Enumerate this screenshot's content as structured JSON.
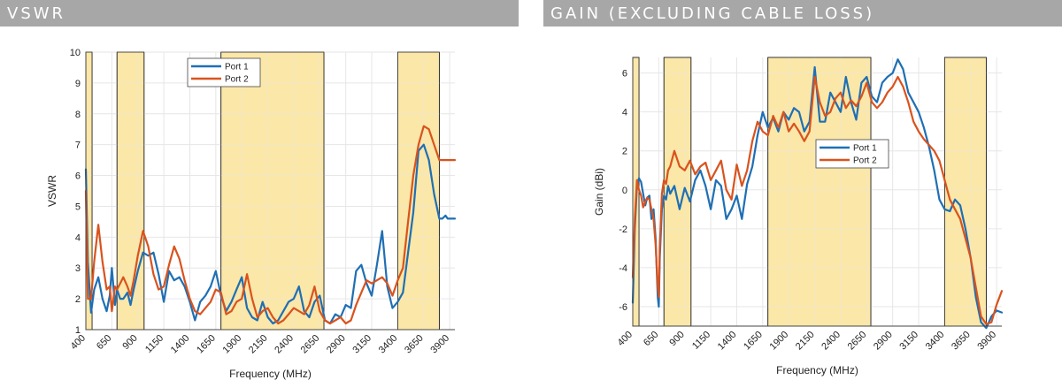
{
  "panels": {
    "left_title": "VSWR",
    "right_title": "GAIN (EXCLUDING CABLE LOSS)"
  },
  "colors": {
    "port1": "#1f6fb4",
    "port2": "#d9531e",
    "band_fill": "#fbe7a8",
    "band_edge": "#222222",
    "grid": "#e6e6e6"
  },
  "chart_data": [
    {
      "type": "line",
      "title": "VSWR",
      "xlabel": "Frequency (MHz)",
      "ylabel": "VSWR",
      "xlim": [
        400,
        3950
      ],
      "ylim": [
        1,
        10
      ],
      "x_ticks": [
        400,
        650,
        900,
        1150,
        1400,
        1650,
        1900,
        2150,
        2400,
        2650,
        2900,
        3150,
        3400,
        3650,
        3900
      ],
      "y_ticks": [
        1,
        2,
        3,
        4,
        5,
        6,
        7,
        8,
        9,
        10
      ],
      "grid": true,
      "legend": "top-center",
      "bands": [
        [
          400,
          460
        ],
        [
          700,
          960
        ],
        [
          1700,
          2690
        ],
        [
          3400,
          3800
        ]
      ],
      "series": [
        {
          "name": "Port 1",
          "color": "#1f6fb4",
          "x": [
            400,
            420,
            450,
            480,
            520,
            560,
            600,
            630,
            650,
            680,
            700,
            730,
            760,
            800,
            830,
            860,
            900,
            950,
            1000,
            1050,
            1100,
            1150,
            1200,
            1250,
            1300,
            1350,
            1400,
            1450,
            1500,
            1550,
            1600,
            1650,
            1700,
            1750,
            1800,
            1850,
            1900,
            1950,
            2000,
            2050,
            2100,
            2150,
            2200,
            2250,
            2300,
            2350,
            2400,
            2450,
            2500,
            2550,
            2600,
            2650,
            2700,
            2750,
            2800,
            2850,
            2900,
            2950,
            3000,
            3050,
            3100,
            3150,
            3200,
            3250,
            3300,
            3350,
            3400,
            3450,
            3500,
            3550,
            3600,
            3650,
            3700,
            3750,
            3800,
            3830,
            3860,
            3880,
            3900,
            3930,
            3950
          ],
          "y": [
            6.2,
            3.2,
            1.55,
            2.3,
            2.7,
            2.0,
            1.6,
            2.1,
            3.0,
            1.8,
            2.3,
            2.0,
            2.0,
            2.2,
            1.8,
            2.3,
            2.9,
            3.5,
            3.4,
            3.5,
            2.8,
            1.9,
            2.9,
            2.6,
            2.7,
            2.4,
            1.9,
            1.3,
            1.9,
            2.1,
            2.4,
            2.9,
            2.1,
            1.6,
            1.9,
            2.3,
            2.7,
            1.7,
            1.4,
            1.3,
            1.9,
            1.4,
            1.2,
            1.3,
            1.6,
            1.9,
            2.0,
            2.4,
            1.6,
            1.4,
            1.9,
            2.1,
            1.3,
            1.2,
            1.5,
            1.4,
            1.8,
            1.7,
            2.9,
            3.1,
            2.5,
            2.1,
            3.1,
            4.2,
            2.4,
            1.7,
            1.9,
            2.2,
            3.5,
            4.8,
            6.8,
            7.0,
            6.5,
            5.4,
            4.6,
            4.6,
            4.7,
            4.6,
            4.6,
            4.6,
            4.6
          ]
        },
        {
          "name": "Port 2",
          "color": "#d9531e",
          "x": [
            400,
            420,
            450,
            480,
            520,
            560,
            600,
            630,
            650,
            680,
            700,
            730,
            760,
            800,
            830,
            860,
            900,
            950,
            1000,
            1050,
            1100,
            1150,
            1200,
            1250,
            1300,
            1350,
            1400,
            1450,
            1500,
            1550,
            1600,
            1650,
            1700,
            1750,
            1800,
            1850,
            1900,
            1950,
            2000,
            2050,
            2100,
            2150,
            2200,
            2250,
            2300,
            2350,
            2400,
            2450,
            2500,
            2550,
            2600,
            2650,
            2700,
            2750,
            2800,
            2850,
            2900,
            2950,
            3000,
            3050,
            3100,
            3150,
            3200,
            3250,
            3300,
            3350,
            3400,
            3450,
            3500,
            3550,
            3600,
            3650,
            3700,
            3750,
            3800,
            3830,
            3860,
            3880,
            3900,
            3930,
            3950
          ],
          "y": [
            5.5,
            2.0,
            2.0,
            3.2,
            4.4,
            3.2,
            2.3,
            2.4,
            1.6,
            2.4,
            2.3,
            2.5,
            2.7,
            2.4,
            2.1,
            2.6,
            3.4,
            4.2,
            3.7,
            2.8,
            2.3,
            2.4,
            3.1,
            3.7,
            3.3,
            2.6,
            2.0,
            1.6,
            1.5,
            1.7,
            1.9,
            2.3,
            2.2,
            1.5,
            1.6,
            1.9,
            2.0,
            2.8,
            2.0,
            1.4,
            1.6,
            1.7,
            1.4,
            1.2,
            1.3,
            1.5,
            1.7,
            1.6,
            1.5,
            1.8,
            2.4,
            1.6,
            1.3,
            1.2,
            1.3,
            1.4,
            1.2,
            1.3,
            1.8,
            2.2,
            2.6,
            2.5,
            2.6,
            2.7,
            2.5,
            2.1,
            2.6,
            3.0,
            4.5,
            6.0,
            7.0,
            7.6,
            7.5,
            7.0,
            6.5,
            6.5,
            6.5,
            6.5,
            6.5,
            6.5,
            6.5
          ]
        }
      ]
    },
    {
      "type": "line",
      "title": "GAIN (EXCLUDING CABLE LOSS)",
      "xlabel": "Frequency (MHz)",
      "ylabel": "Gain (dBi)",
      "xlim": [
        400,
        3950
      ],
      "ylim": [
        -7,
        6.8
      ],
      "x_ticks": [
        400,
        650,
        900,
        1150,
        1400,
        1650,
        1900,
        2150,
        2400,
        2650,
        2900,
        3150,
        3400,
        3650,
        3900
      ],
      "y_ticks": [
        -6,
        -4,
        -2,
        0,
        2,
        4,
        6
      ],
      "grid": true,
      "legend": "center-right",
      "bands": [
        [
          400,
          460
        ],
        [
          700,
          960
        ],
        [
          1700,
          2690
        ],
        [
          3400,
          3800
        ]
      ],
      "series": [
        {
          "name": "Port 1",
          "color": "#1f6fb4",
          "x": [
            400,
            420,
            440,
            460,
            480,
            500,
            520,
            540,
            560,
            580,
            600,
            620,
            640,
            650,
            660,
            680,
            700,
            720,
            740,
            760,
            800,
            850,
            900,
            950,
            1000,
            1050,
            1100,
            1150,
            1200,
            1250,
            1300,
            1350,
            1400,
            1450,
            1500,
            1550,
            1600,
            1650,
            1700,
            1750,
            1800,
            1850,
            1900,
            1950,
            2000,
            2050,
            2100,
            2150,
            2200,
            2250,
            2300,
            2350,
            2400,
            2450,
            2500,
            2550,
            2600,
            2650,
            2700,
            2750,
            2800,
            2850,
            2900,
            2950,
            3000,
            3050,
            3100,
            3150,
            3200,
            3250,
            3300,
            3350,
            3400,
            3450,
            3500,
            3550,
            3600,
            3650,
            3700,
            3750,
            3800,
            3850,
            3900,
            3950
          ],
          "y": [
            -5.8,
            -2.0,
            0.2,
            0.6,
            0.4,
            -0.2,
            -0.8,
            -0.4,
            -0.3,
            -1.5,
            -1.0,
            -2.5,
            -5.5,
            -6.0,
            -3.5,
            -1.0,
            -0.3,
            -0.5,
            0.2,
            -0.2,
            0.2,
            -1.0,
            0.1,
            -0.6,
            0.5,
            1.0,
            0.2,
            -1.0,
            0.5,
            0.2,
            -1.5,
            -1.0,
            -0.3,
            -1.5,
            0.3,
            1.2,
            2.8,
            4.0,
            3.2,
            3.7,
            3.0,
            4.0,
            3.6,
            4.2,
            4.0,
            3.0,
            3.5,
            6.3,
            3.5,
            3.5,
            5.0,
            4.5,
            4.0,
            5.8,
            4.5,
            3.6,
            5.5,
            5.8,
            4.8,
            4.5,
            5.5,
            5.8,
            6.0,
            6.7,
            6.2,
            5.0,
            4.5,
            4.0,
            3.2,
            2.2,
            1.0,
            -0.5,
            -1.0,
            -1.1,
            -0.5,
            -0.8,
            -2.0,
            -3.5,
            -5.5,
            -6.8,
            -7.1,
            -6.5,
            -6.2,
            -6.3
          ]
        },
        {
          "name": "Port 2",
          "color": "#d9531e",
          "x": [
            400,
            420,
            440,
            460,
            480,
            500,
            520,
            540,
            560,
            580,
            600,
            620,
            640,
            650,
            660,
            680,
            700,
            720,
            740,
            760,
            800,
            850,
            900,
            950,
            1000,
            1050,
            1100,
            1150,
            1200,
            1250,
            1300,
            1350,
            1400,
            1450,
            1500,
            1550,
            1600,
            1650,
            1700,
            1750,
            1800,
            1850,
            1900,
            1950,
            2000,
            2050,
            2100,
            2150,
            2200,
            2250,
            2300,
            2350,
            2400,
            2450,
            2500,
            2550,
            2600,
            2650,
            2700,
            2750,
            2800,
            2850,
            2900,
            2950,
            3000,
            3050,
            3100,
            3150,
            3200,
            3250,
            3300,
            3350,
            3400,
            3450,
            3500,
            3550,
            3600,
            3650,
            3700,
            3750,
            3800,
            3850,
            3900,
            3950
          ],
          "y": [
            -4.5,
            -1.5,
            0.5,
            0.0,
            -0.3,
            -0.9,
            -0.6,
            -0.4,
            -0.5,
            -1.0,
            -1.5,
            -2.8,
            -5.0,
            -5.5,
            -3.0,
            -0.2,
            0.5,
            0.3,
            1.0,
            1.2,
            2.0,
            1.2,
            1.0,
            1.5,
            0.8,
            1.2,
            1.4,
            0.5,
            1.0,
            1.5,
            0.0,
            -0.5,
            1.3,
            0.2,
            1.0,
            2.5,
            3.5,
            3.0,
            2.8,
            3.8,
            3.2,
            4.0,
            3.0,
            3.4,
            3.0,
            2.5,
            3.0,
            5.8,
            4.5,
            3.8,
            4.0,
            4.7,
            5.0,
            4.2,
            4.6,
            4.3,
            4.8,
            5.5,
            4.5,
            4.2,
            4.5,
            5.0,
            5.3,
            5.8,
            5.3,
            4.5,
            3.5,
            3.0,
            2.6,
            2.3,
            2.0,
            1.5,
            0.5,
            -0.5,
            -1.0,
            -1.5,
            -2.5,
            -3.5,
            -5.0,
            -6.5,
            -6.9,
            -6.8,
            -5.9,
            -5.2
          ]
        }
      ]
    }
  ]
}
